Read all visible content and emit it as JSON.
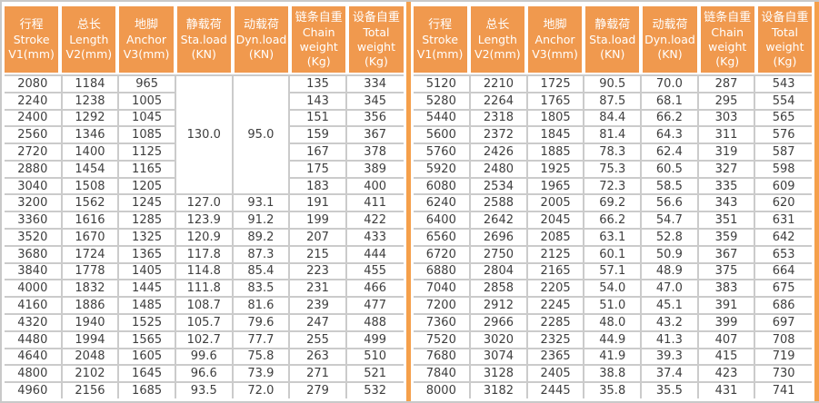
{
  "colors": {
    "header_bg": "#F0994E",
    "divider_orange": "#F5A04B",
    "grid_gray": "#CBCBCB",
    "cell_text": "#3E3E3E",
    "header_text": "#FFFFFF"
  },
  "columns": [
    {
      "key": "v1",
      "zh": "行程",
      "en": [
        "Stroke",
        "V1(mm)"
      ]
    },
    {
      "key": "v2",
      "zh": "总长",
      "en": [
        "Length",
        "V2(mm)"
      ]
    },
    {
      "key": "v3",
      "zh": "地脚",
      "en": [
        "Anchor",
        "V3(mm)"
      ]
    },
    {
      "key": "sta",
      "zh": "静载荷",
      "en": [
        "Sta.load",
        "(KN)"
      ]
    },
    {
      "key": "dyn",
      "zh": "动载荷",
      "en": [
        "Dyn.load",
        "(KN)"
      ]
    },
    {
      "key": "chain",
      "zh": "链条自重",
      "en": [
        "Chain",
        "weight",
        "(Kg)"
      ]
    },
    {
      "key": "total",
      "zh": "设备自重",
      "en": [
        "Total",
        "weight",
        "(Kg)"
      ]
    }
  ],
  "left_table": {
    "merged": {
      "sta": "130.0",
      "dyn": "95.0",
      "rowspan": 7
    },
    "rows": [
      [
        "2080",
        "1184",
        "965",
        null,
        null,
        "135",
        "334"
      ],
      [
        "2240",
        "1238",
        "1005",
        null,
        null,
        "143",
        "345"
      ],
      [
        "2400",
        "1292",
        "1045",
        null,
        null,
        "151",
        "356"
      ],
      [
        "2560",
        "1346",
        "1085",
        null,
        null,
        "159",
        "367"
      ],
      [
        "2720",
        "1400",
        "1125",
        null,
        null,
        "167",
        "378"
      ],
      [
        "2880",
        "1454",
        "1165",
        null,
        null,
        "175",
        "389"
      ],
      [
        "3040",
        "1508",
        "1205",
        null,
        null,
        "183",
        "400"
      ],
      [
        "3200",
        "1562",
        "1245",
        "127.0",
        "93.1",
        "191",
        "411"
      ],
      [
        "3360",
        "1616",
        "1285",
        "123.9",
        "91.2",
        "199",
        "422"
      ],
      [
        "3520",
        "1670",
        "1325",
        "120.9",
        "89.2",
        "207",
        "433"
      ],
      [
        "3680",
        "1724",
        "1365",
        "117.8",
        "87.3",
        "215",
        "444"
      ],
      [
        "3840",
        "1778",
        "1405",
        "114.8",
        "85.4",
        "223",
        "455"
      ],
      [
        "4000",
        "1832",
        "1445",
        "111.8",
        "83.5",
        "231",
        "466"
      ],
      [
        "4160",
        "1886",
        "1485",
        "108.7",
        "81.6",
        "239",
        "477"
      ],
      [
        "4320",
        "1940",
        "1525",
        "105.7",
        "79.6",
        "247",
        "488"
      ],
      [
        "4480",
        "1994",
        "1565",
        "102.7",
        "77.7",
        "255",
        "499"
      ],
      [
        "4640",
        "2048",
        "1605",
        "99.6",
        "75.8",
        "263",
        "510"
      ],
      [
        "4800",
        "2102",
        "1645",
        "96.6",
        "73.9",
        "271",
        "521"
      ],
      [
        "4960",
        "2156",
        "1685",
        "93.5",
        "72.0",
        "279",
        "532"
      ]
    ]
  },
  "right_table": {
    "rows": [
      [
        "5120",
        "2210",
        "1725",
        "90.5",
        "70.0",
        "287",
        "543"
      ],
      [
        "5280",
        "2264",
        "1765",
        "87.5",
        "68.1",
        "295",
        "554"
      ],
      [
        "5440",
        "2318",
        "1805",
        "84.4",
        "66.2",
        "303",
        "565"
      ],
      [
        "5600",
        "2372",
        "1845",
        "81.4",
        "64.3",
        "311",
        "576"
      ],
      [
        "5760",
        "2426",
        "1885",
        "78.3",
        "62.4",
        "319",
        "587"
      ],
      [
        "5920",
        "2480",
        "1925",
        "75.3",
        "60.5",
        "327",
        "598"
      ],
      [
        "6080",
        "2534",
        "1965",
        "72.3",
        "58.5",
        "335",
        "609"
      ],
      [
        "6240",
        "2588",
        "2005",
        "69.2",
        "56.6",
        "343",
        "620"
      ],
      [
        "6400",
        "2642",
        "2045",
        "66.2",
        "54.7",
        "351",
        "631"
      ],
      [
        "6560",
        "2696",
        "2085",
        "63.1",
        "52.8",
        "359",
        "642"
      ],
      [
        "6720",
        "2750",
        "2125",
        "60.1",
        "50.9",
        "367",
        "653"
      ],
      [
        "6880",
        "2804",
        "2165",
        "57.1",
        "48.9",
        "375",
        "664"
      ],
      [
        "7040",
        "2858",
        "2205",
        "54.0",
        "47.0",
        "383",
        "675"
      ],
      [
        "7200",
        "2912",
        "2245",
        "51.0",
        "45.1",
        "391",
        "686"
      ],
      [
        "7360",
        "2966",
        "2285",
        "48.0",
        "43.2",
        "399",
        "697"
      ],
      [
        "7520",
        "3020",
        "2325",
        "44.9",
        "41.3",
        "407",
        "708"
      ],
      [
        "7680",
        "3074",
        "2365",
        "41.9",
        "39.3",
        "415",
        "719"
      ],
      [
        "7840",
        "3128",
        "2405",
        "38.8",
        "37.4",
        "423",
        "730"
      ],
      [
        "8000",
        "3182",
        "2445",
        "35.8",
        "35.5",
        "431",
        "741"
      ]
    ]
  }
}
